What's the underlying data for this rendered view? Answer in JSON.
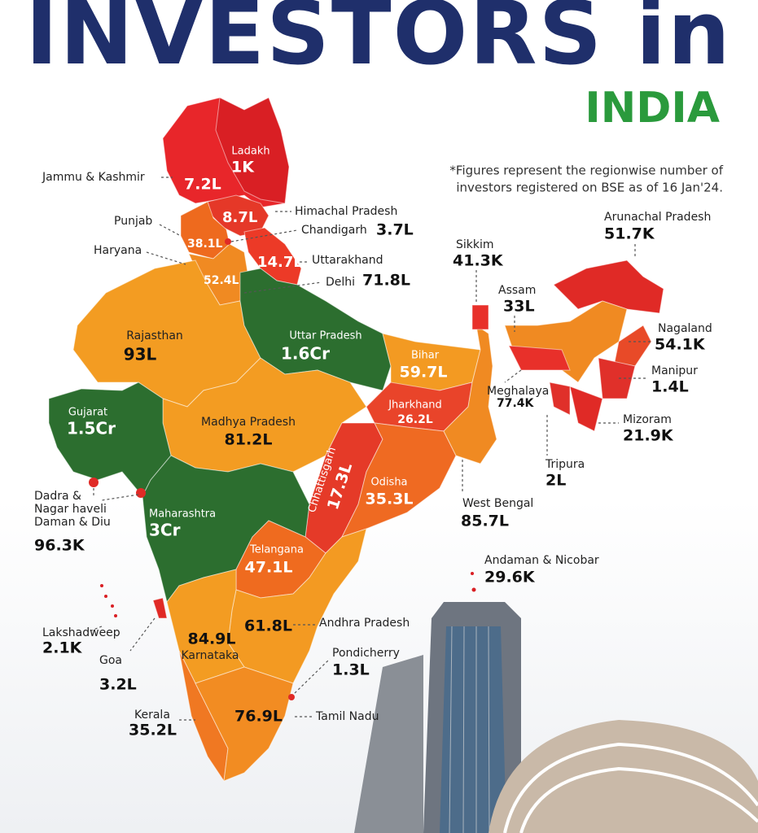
{
  "header": {
    "title": "INVESTORS in",
    "subtitle": "INDIA"
  },
  "note": [
    "*Figures represent the regionwise number of",
    "investors registered on BSE as of 16 Jan'24."
  ],
  "regions": [
    {
      "name": "Ladakh",
      "value": "1K"
    },
    {
      "name": "Jammu & Kashmir",
      "value": "7.2L"
    },
    {
      "name": "Himachal Pradesh",
      "value": "8.7L"
    },
    {
      "name": "Chandigarh",
      "value": "3.7L"
    },
    {
      "name": "Punjab",
      "value": "38.1L"
    },
    {
      "name": "Haryana",
      "value": "52.4L"
    },
    {
      "name": "Uttarakhand",
      "value": "14.7L"
    },
    {
      "name": "Delhi",
      "value": "71.8L"
    },
    {
      "name": "Rajasthan",
      "value": "93L"
    },
    {
      "name": "Uttar Pradesh",
      "value": "1.6Cr"
    },
    {
      "name": "Bihar",
      "value": "59.7L"
    },
    {
      "name": "Gujarat",
      "value": "1.5Cr"
    },
    {
      "name": "Madhya Pradesh",
      "value": "81.2L"
    },
    {
      "name": "Jharkhand",
      "value": "26.2L"
    },
    {
      "name": "Chhattisgarh",
      "value": "17.3L"
    },
    {
      "name": "Odisha",
      "value": "35.3L"
    },
    {
      "name": "West Bengal",
      "value": "85.7L"
    },
    {
      "name": [
        "Dadra &",
        "Nagar haveli",
        "Daman & Diu"
      ],
      "value": "96.3K"
    },
    {
      "name": "Maharashtra",
      "value": "3Cr"
    },
    {
      "name": "Telangana",
      "value": "47.1L"
    },
    {
      "name": "Andhra Pradesh",
      "value": "61.8L"
    },
    {
      "name": "Lakshadweep",
      "value": "2.1K"
    },
    {
      "name": "Goa",
      "value": "3.2L"
    },
    {
      "name": "Karnataka",
      "value": "84.9L"
    },
    {
      "name": "Pondicherry",
      "value": "1.3L"
    },
    {
      "name": "Kerala",
      "value": "35.2L"
    },
    {
      "name": "Tamil Nadu",
      "value": "76.9L"
    },
    {
      "name": "Andaman & Nicobar",
      "value": "29.6K"
    },
    {
      "name": "Sikkim",
      "value": "41.3K"
    },
    {
      "name": "Assam",
      "value": "33L"
    },
    {
      "name": "Arunachal Pradesh",
      "value": "51.7K"
    },
    {
      "name": "Nagaland",
      "value": "54.1K"
    },
    {
      "name": "Manipur",
      "value": "1.4L"
    },
    {
      "name": "Meghalaya",
      "value": "77.4K"
    },
    {
      "name": "Mizoram",
      "value": "21.9K"
    },
    {
      "name": "Tripura",
      "value": "2L"
    }
  ]
}
